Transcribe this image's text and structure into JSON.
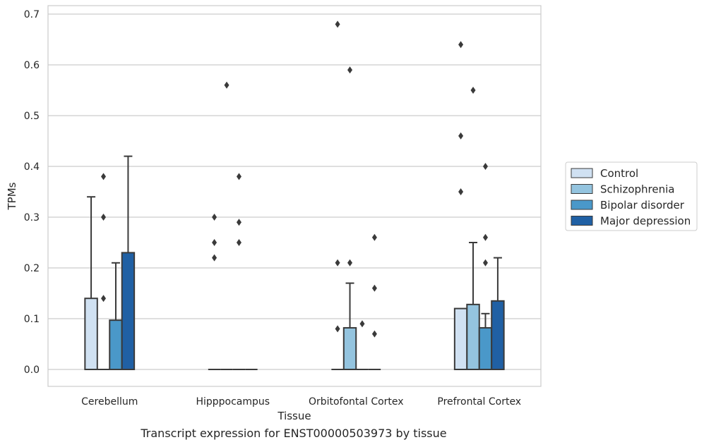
{
  "caption": "Transcript expression for ENST00000503973 by tissue",
  "chart_data": {
    "type": "bar",
    "xlabel": "Tissue",
    "ylabel": "TPMs",
    "ylim": [
      -0.033,
      0.715
    ],
    "yticks": [
      "0.0",
      "0.1",
      "0.2",
      "0.3",
      "0.4",
      "0.5",
      "0.6",
      "0.7"
    ],
    "grid": true,
    "legend_position": "right",
    "categories": [
      "Cerebellum",
      "Hipppocampus",
      "Orbitofontal Cortex",
      "Prefrontal Cortex"
    ],
    "series": [
      {
        "name": "Control",
        "color": "#d0e1f2",
        "values": [
          0.14,
          0.0,
          0.0,
          0.12
        ],
        "error_upper": [
          0.34,
          null,
          null,
          null
        ],
        "outliers": [
          [],
          [
            0.22,
            0.25,
            0.3
          ],
          [
            0.08,
            0.21,
            0.68
          ],
          [
            0.35,
            0.46,
            0.64
          ]
        ]
      },
      {
        "name": "Schizophrenia",
        "color": "#94c4df",
        "values": [
          0.0,
          0.0,
          0.082,
          0.128
        ],
        "error_upper": [
          null,
          null,
          0.17,
          0.25
        ],
        "outliers": [
          [
            0.14,
            0.3,
            0.38
          ],
          [
            0.56
          ],
          [
            0.21,
            0.59
          ],
          [
            0.55
          ]
        ]
      },
      {
        "name": "Bipolar disorder",
        "color": "#4a98c9",
        "values": [
          0.097,
          0.0,
          0.0,
          0.082
        ],
        "error_upper": [
          0.21,
          null,
          null,
          0.11
        ],
        "outliers": [
          [],
          [
            0.25,
            0.29,
            0.38
          ],
          [
            0.09
          ],
          [
            0.21,
            0.26,
            0.4
          ]
        ]
      },
      {
        "name": "Major depression",
        "color": "#2060a4",
        "values": [
          0.23,
          0.0,
          0.0,
          0.135
        ],
        "error_upper": [
          0.42,
          null,
          null,
          0.22
        ],
        "outliers": [
          [],
          [],
          [
            0.07,
            0.16,
            0.26
          ],
          []
        ]
      }
    ]
  }
}
